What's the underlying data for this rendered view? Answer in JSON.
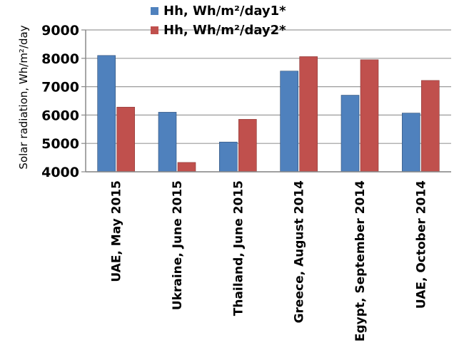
{
  "chart_data": {
    "type": "bar",
    "categories": [
      "UAE, May 2015",
      "Ukraine, June 2015",
      "Thailand, June 2015",
      "Greece, August 2014",
      "Egypt, September 2014",
      "UAE, October 2014"
    ],
    "series": [
      {
        "name": "Hh, Wh/m²/day1*",
        "color": "#4f81bd",
        "values": [
          8100,
          6100,
          5050,
          7550,
          6700,
          6070
        ]
      },
      {
        "name": "Hh, Wh/m²/day2*",
        "color": "#c0504d",
        "values": [
          6280,
          4330,
          5850,
          8060,
          7950,
          7220
        ]
      }
    ],
    "ylabel": "Solar radiation, Wh/m²/day",
    "ylim": [
      4000,
      9000
    ],
    "yticks": [
      "4000",
      "5000",
      "6000",
      "7000",
      "8000",
      "9000"
    ],
    "legend_position": "top-right"
  }
}
